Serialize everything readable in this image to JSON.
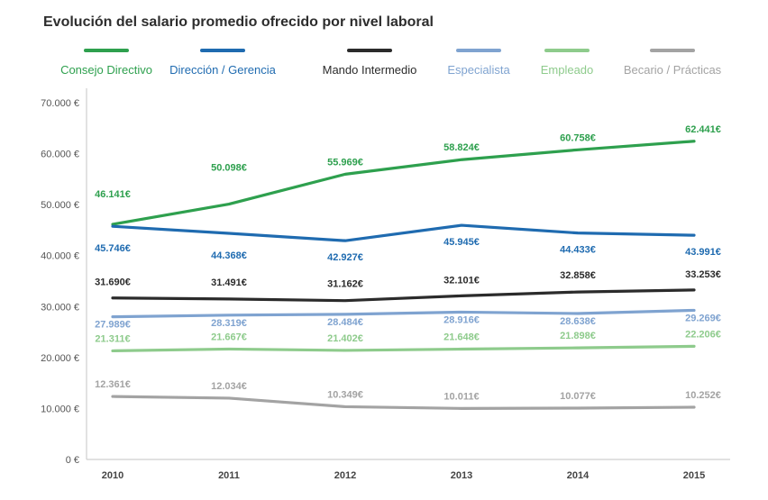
{
  "chart_data": {
    "type": "line",
    "title": "Evolución del salario promedio ofrecido por nivel laboral",
    "xlabel": "",
    "ylabel": "",
    "categories": [
      "2010",
      "2011",
      "2012",
      "2013",
      "2014",
      "2015"
    ],
    "ylim": [
      0,
      70000
    ],
    "yticks": [
      0,
      10000,
      20000,
      30000,
      40000,
      50000,
      60000,
      70000
    ],
    "ytick_labels": [
      "0 €",
      "10.000 €",
      "20.000 €",
      "30.000 €",
      "40.000 €",
      "50.000 €",
      "60.000 €",
      "70.000 €"
    ],
    "grid": false,
    "legend_position": "top",
    "series": [
      {
        "name": "Consejo Directivo",
        "color": "#2ea04e",
        "values": [
          46141,
          50098,
          55969,
          58824,
          60758,
          62441
        ],
        "labels": [
          "46.141€",
          "50.098€",
          "55.969€",
          "58.824€",
          "60.758€",
          "62.441€"
        ]
      },
      {
        "name": "Dirección / Gerencia",
        "color": "#1f6bb0",
        "values": [
          45746,
          44368,
          42927,
          45945,
          44433,
          43991
        ],
        "labels": [
          "45.746€",
          "44.368€",
          "42.927€",
          "45.945€",
          "44.433€",
          "43.991€"
        ]
      },
      {
        "name": "Mando Intermedio",
        "color": "#2b2b2b",
        "values": [
          31690,
          31491,
          31162,
          32101,
          32858,
          33253
        ],
        "labels": [
          "31.690€",
          "31.491€",
          "31.162€",
          "32.101€",
          "32.858€",
          "33.253€"
        ]
      },
      {
        "name": "Especialista",
        "color": "#7fa3d0",
        "values": [
          27989,
          28319,
          28484,
          28916,
          28638,
          29269
        ],
        "labels": [
          "27.989€",
          "28.319€",
          "28.484€",
          "28.916€",
          "28.638€",
          "29.269€"
        ]
      },
      {
        "name": "Empleado",
        "color": "#8ecb8c",
        "values": [
          21311,
          21667,
          21402,
          21648,
          21898,
          22206
        ],
        "labels": [
          "21.311€",
          "21.667€",
          "21.402€",
          "21.648€",
          "21.898€",
          "22.206€"
        ]
      },
      {
        "name": "Becario / Prácticas",
        "color": "#a3a3a3",
        "values": [
          12361,
          12034,
          10349,
          10011,
          10077,
          10252
        ],
        "labels": [
          "12.361€",
          "12.034€",
          "10.349€",
          "10.011€",
          "10.077€",
          "10.252€"
        ]
      }
    ]
  }
}
